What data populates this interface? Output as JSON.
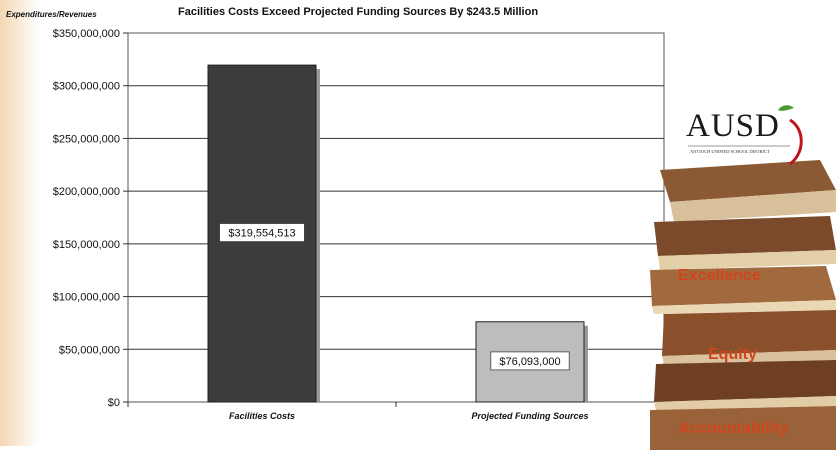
{
  "chart_data": {
    "type": "bar",
    "title": "Facilities Costs Exceed Projected Funding Sources By $243.5 Million",
    "ylabel": "Expenditures/Revenues",
    "xlabel": "",
    "categories": [
      "Facilities Costs",
      "Projected Funding Sources"
    ],
    "values": [
      319554513,
      76093000
    ],
    "data_labels": [
      "$319,554,513",
      "$76,093,000"
    ],
    "bar_colors": [
      "#3c3c3c",
      "#bdbdbd"
    ],
    "ylim": [
      0,
      350000000
    ],
    "yticks": [
      0,
      50000000,
      100000000,
      150000000,
      200000000,
      250000000,
      300000000,
      350000000
    ],
    "ytick_labels": [
      "$0",
      "$50,000,000",
      "$100,000,000",
      "$150,000,000",
      "$200,000,000",
      "$250,000,000",
      "$300,000,000",
      "$350,000,000"
    ],
    "grid": true
  },
  "branding": {
    "logo_text": "AUSD",
    "logo_subtext": "ANTIOCH UNIFIED SCHOOL DISTRICT",
    "motto": [
      "Excellence",
      "Equity",
      "Accountability"
    ],
    "motto_color": "#d1451c"
  }
}
